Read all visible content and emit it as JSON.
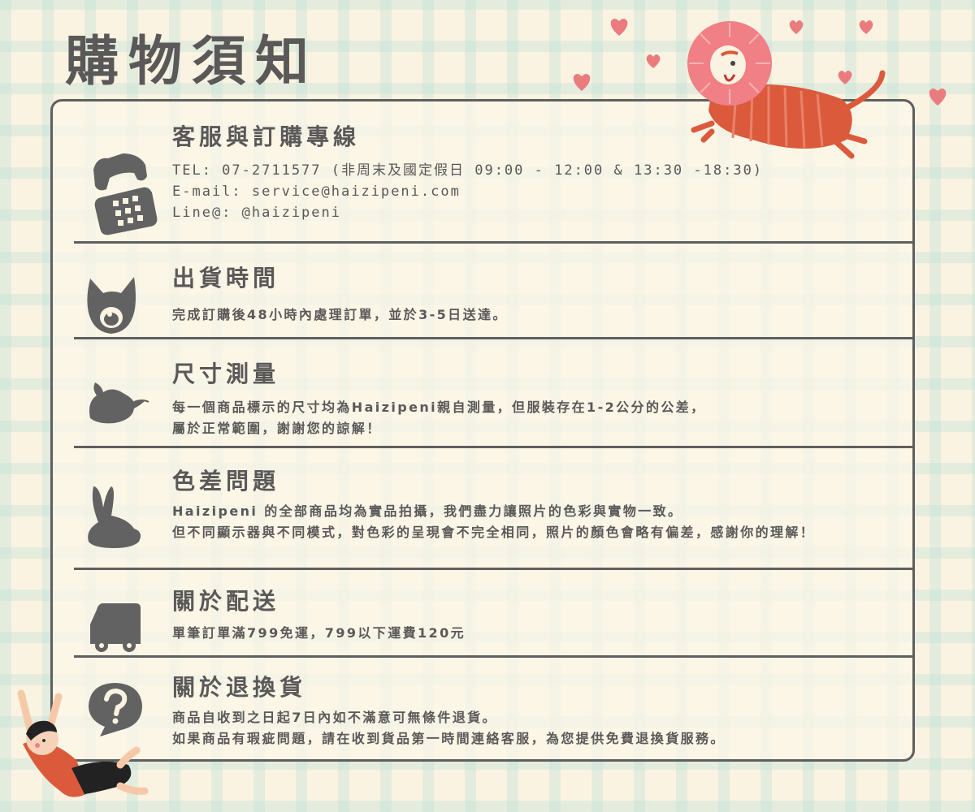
{
  "page_title": "購物須知",
  "colors": {
    "text": "#5a5858",
    "border": "#5f5f5f",
    "lion_red": "#dc5a3c",
    "heart": "#ea7c7e",
    "background": "#fbf3e2"
  },
  "sections": [
    {
      "icon": "telephone-icon",
      "title": "客服與訂購專線",
      "lines": [
        "TEL: 07-2711577 (非周末及國定假日 09:00 - 12:00 & 13:30 -18:30)",
        "E-mail: service@haizipeni.com",
        "Line@: @haizipeni"
      ]
    },
    {
      "icon": "cat-face-icon",
      "title": "出貨時間",
      "lines": [
        "完成訂購後48小時內處理訂單，並於3-5日送達。"
      ]
    },
    {
      "icon": "mouse-icon",
      "title": "尺寸測量",
      "lines": [
        "每一個商品標示的尺寸均為Haizipeni親自測量，但服裝存在1-2公分的公差，",
        "屬於正常範圍，謝謝您的諒解！"
      ]
    },
    {
      "icon": "rabbit-icon",
      "title": "色差問題",
      "lines": [
        "Haizipeni 的全部商品均為實品拍攝，我們盡力讓照片的色彩與實物一致。",
        "但不同顯示器與不同模式，對色彩的呈現會不完全相同，照片的顏色會略有偏差，感謝你的理解！"
      ]
    },
    {
      "icon": "truck-icon",
      "title": "關於配送",
      "lines": [
        "單筆訂單滿799免運，799以下運費120元"
      ]
    },
    {
      "icon": "question-bubble-icon",
      "title": "關於退換貨",
      "lines": [
        "商品自收到之日起7日內如不滿意可無條件退貨。",
        "如果商品有瑕疵問題，請在收到貨品第一時間連絡客服，為您提供免費退換貨服務。"
      ]
    }
  ]
}
